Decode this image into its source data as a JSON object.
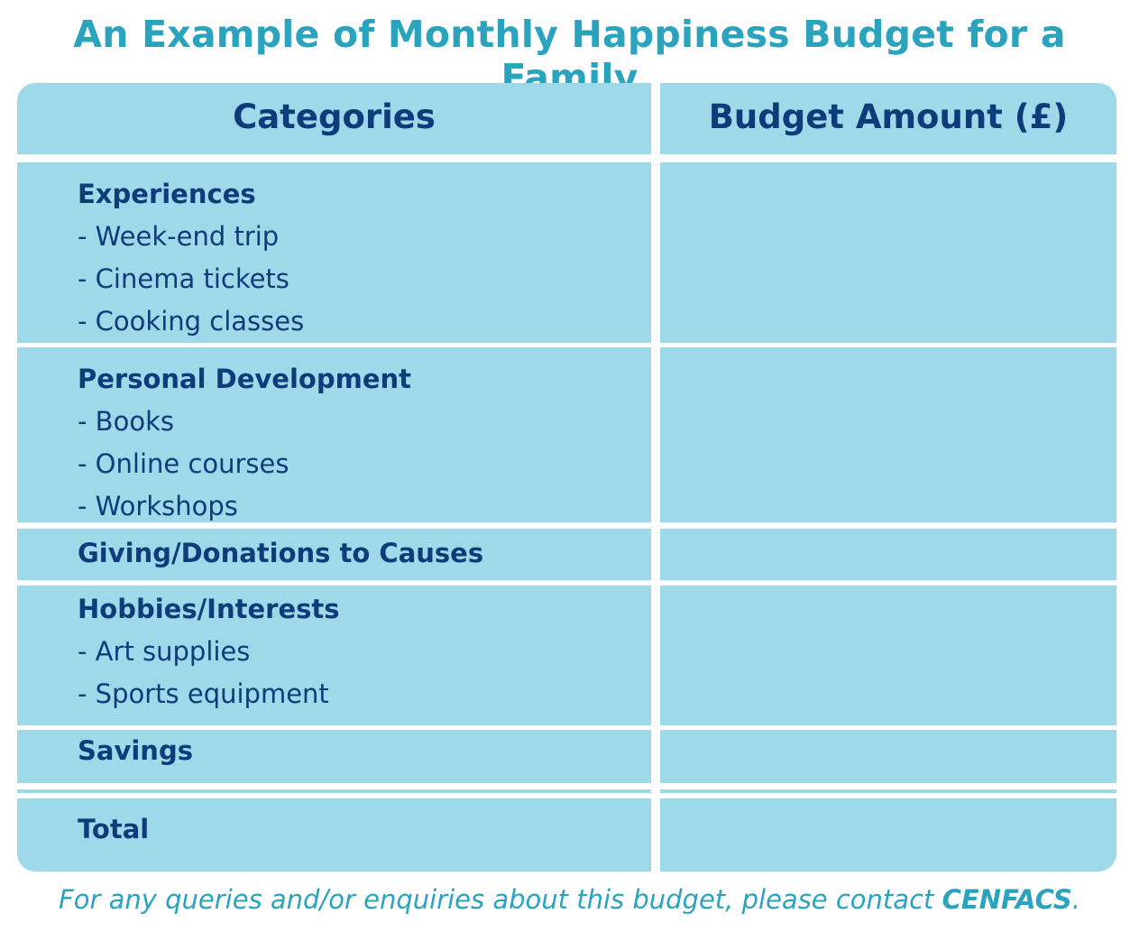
{
  "title": "An Example of Monthly Happiness Budget for a Family",
  "table": {
    "headers": [
      "Categories",
      "Budget Amount (£)"
    ],
    "rows": [
      {
        "heading": "Experiences",
        "items": [
          "- Week-end trip",
          "- Cinema tickets",
          "- Cooking classes"
        ],
        "amount": ""
      },
      {
        "heading": "Personal Development",
        "items": [
          "- Books",
          "- Online courses",
          "- Workshops"
        ],
        "amount": ""
      },
      {
        "heading": "Giving/Donations to Causes",
        "items": [],
        "amount": ""
      },
      {
        "heading": "Hobbies/Interests",
        "items": [
          "- Art supplies",
          "- Sports equipment"
        ],
        "amount": ""
      },
      {
        "heading": "Savings",
        "items": [],
        "amount": ""
      },
      {
        "heading": "",
        "items": [],
        "amount": ""
      },
      {
        "heading": "Total",
        "items": [],
        "amount": ""
      }
    ]
  },
  "footer": {
    "text": "For any queries and/or enquiries about this budget, please contact ",
    "contact": "CENFACS",
    "end": "."
  },
  "colors": {
    "title": "#2aa3bf",
    "cell_fill": "#9dd9e8",
    "text": "#0d3c7a"
  }
}
